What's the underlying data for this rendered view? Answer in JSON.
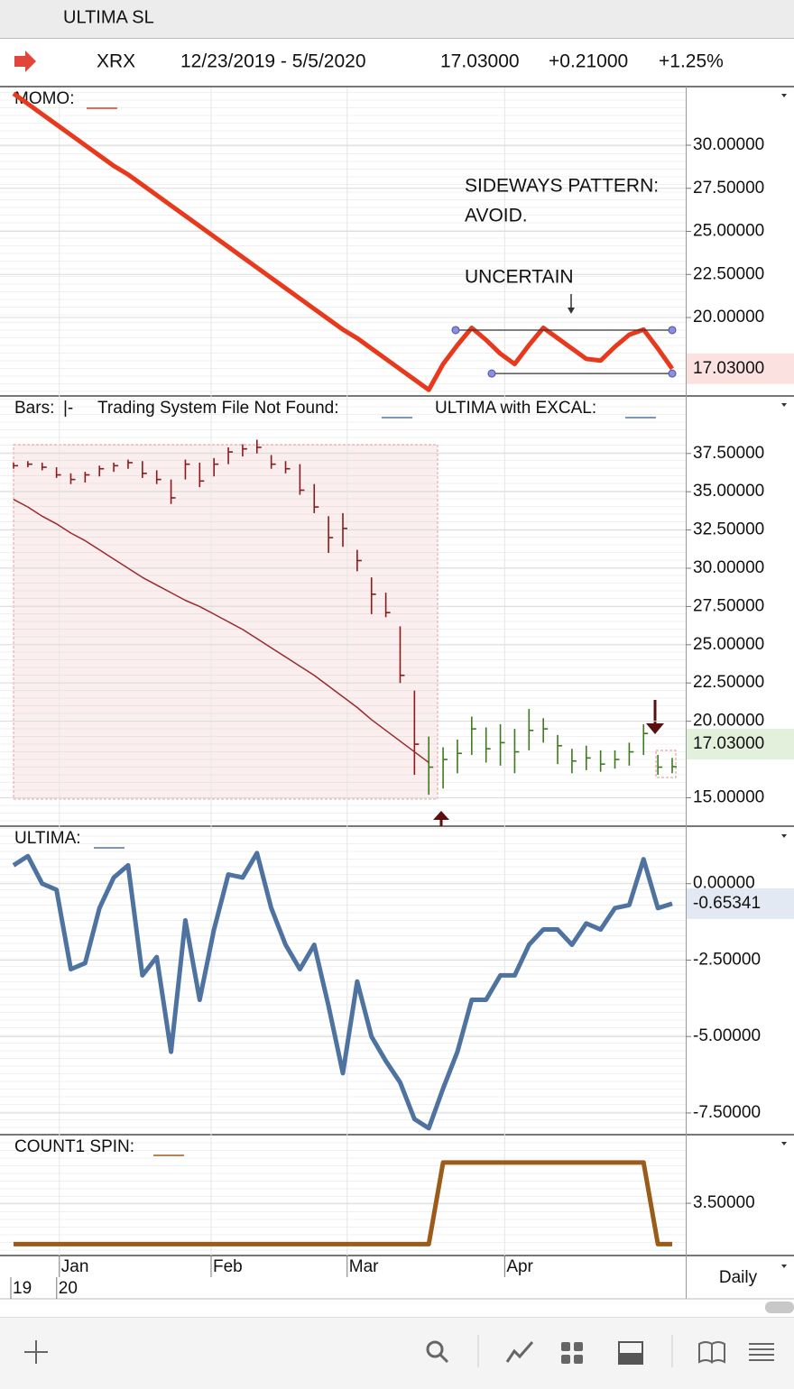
{
  "header": {
    "title": "ULTIMA SL",
    "symbol": "XRX",
    "range": "12/23/2019 - 5/5/2020",
    "last": "17.03000",
    "change": "+0.21000",
    "percent": "+1.25%"
  },
  "x_axis": {
    "xlim": [
      0,
      46
    ],
    "xticks": [
      {
        "value": 3.2,
        "label": "Jan"
      },
      {
        "value": 13.8,
        "label": "Feb"
      },
      {
        "value": 23.3,
        "label": "Mar"
      },
      {
        "value": 34.3,
        "label": "Apr"
      }
    ],
    "years": [
      {
        "value": 0,
        "label": "19"
      },
      {
        "value": 3.2,
        "label": "20"
      }
    ],
    "period": "Daily"
  },
  "chart_data": [
    {
      "type": "line",
      "legend": [
        "MOMO:"
      ],
      "ylim": [
        15.5,
        33.35
      ],
      "yticks": [
        {
          "value": 30,
          "label": "30.00000"
        },
        {
          "value": 27.5,
          "label": "27.50000"
        },
        {
          "value": 25,
          "label": "25.00000"
        },
        {
          "value": 22.5,
          "label": "22.50000"
        },
        {
          "value": 20,
          "label": "20.00000"
        }
      ],
      "series": [
        {
          "color": "#e8391d",
          "values": [
            33.0,
            32.4,
            31.8,
            31.2,
            30.6,
            30.0,
            29.4,
            28.8,
            28.3,
            27.7,
            27.1,
            26.5,
            25.9,
            25.3,
            24.7,
            24.1,
            23.5,
            22.9,
            22.3,
            21.7,
            21.1,
            20.5,
            19.9,
            19.3,
            18.8,
            18.2,
            17.6,
            17.0,
            16.4,
            15.8,
            17.3,
            18.4,
            19.4,
            18.7,
            17.9,
            17.3,
            18.4,
            19.4,
            18.8,
            18.2,
            17.6,
            17.5,
            18.3,
            19.0,
            19.3,
            18.2,
            17.03
          ]
        }
      ],
      "value_label": "17.03000",
      "label_color": "#fbe1df",
      "label_text_color": "#d8341c",
      "annotations": [
        "SIDEWAYS PATTERN:",
        "AVOID.",
        "UNCERTAIN"
      ],
      "channel": {
        "upper": 19.27,
        "lower": 16.75
      }
    },
    {
      "type": "ohlc",
      "legend": [
        "Bars:",
        "|-",
        "Trading System File Not Found:",
        "ULTIMA with EXCAL:"
      ],
      "ylim": [
        13.2,
        41.2
      ],
      "yticks": [
        {
          "value": 37.5,
          "label": "37.50000"
        },
        {
          "value": 35,
          "label": "35.00000"
        },
        {
          "value": 32.5,
          "label": "32.50000"
        },
        {
          "value": 30,
          "label": "30.00000"
        },
        {
          "value": 27.5,
          "label": "27.50000"
        },
        {
          "value": 25,
          "label": "25.00000"
        },
        {
          "value": 22.5,
          "label": "22.50000"
        },
        {
          "value": 20,
          "label": "20.00000"
        },
        {
          "value": 15,
          "label": "15.00000"
        }
      ],
      "series": [
        {
          "color": "#8b1a1a",
          "x": [
            0,
            1,
            2,
            3,
            4,
            5,
            6,
            7,
            8,
            9,
            10,
            11,
            12,
            13,
            14,
            15,
            16,
            17,
            18,
            19,
            20,
            21,
            22,
            23,
            24,
            25,
            26,
            27,
            28
          ],
          "high": [
            36.9,
            37.0,
            36.9,
            36.6,
            36.2,
            36.3,
            36.7,
            36.9,
            37.1,
            37.0,
            36.4,
            35.8,
            37.1,
            36.9,
            37.2,
            37.9,
            38.1,
            38.4,
            37.4,
            37.0,
            36.8,
            35.5,
            33.4,
            33.6,
            31.2,
            29.4,
            28.4,
            26.2,
            22.0
          ],
          "low": [
            36.5,
            36.6,
            36.4,
            35.9,
            35.5,
            35.6,
            36.0,
            36.3,
            36.5,
            35.9,
            35.5,
            34.2,
            35.8,
            35.3,
            36.0,
            36.8,
            37.3,
            37.5,
            36.5,
            36.2,
            34.8,
            33.6,
            31.0,
            31.4,
            29.8,
            27.0,
            26.8,
            22.5,
            16.5
          ],
          "close": [
            36.7,
            36.8,
            36.6,
            36.1,
            35.8,
            36.1,
            36.5,
            36.7,
            36.9,
            36.2,
            35.8,
            34.6,
            36.8,
            35.7,
            36.8,
            37.6,
            37.8,
            37.9,
            36.8,
            36.5,
            35.1,
            34.0,
            32.0,
            32.6,
            30.5,
            28.3,
            27.1,
            23.0,
            18.5
          ]
        },
        {
          "color": "#3d7a1e",
          "x": [
            29,
            30,
            31,
            32,
            33,
            34,
            35,
            36,
            37,
            38,
            39,
            40,
            41,
            42,
            43,
            44,
            45,
            46
          ],
          "high": [
            19.0,
            18.3,
            18.8,
            20.3,
            19.6,
            19.8,
            19.5,
            20.8,
            20.2,
            19.1,
            18.2,
            18.4,
            18.1,
            18.1,
            18.6,
            19.8,
            17.8,
            17.6
          ],
          "low": [
            15.2,
            15.6,
            16.6,
            17.8,
            17.3,
            17.1,
            16.6,
            18.1,
            18.6,
            17.2,
            16.6,
            16.8,
            16.7,
            16.9,
            17.1,
            17.8,
            16.5,
            16.6
          ],
          "close": [
            17.0,
            17.5,
            17.9,
            19.5,
            18.2,
            18.6,
            18.0,
            19.4,
            19.5,
            18.4,
            17.4,
            17.6,
            17.2,
            17.5,
            18.0,
            19.2,
            17.0,
            17.03
          ]
        },
        {
          "color": "#9b2a2a",
          "values": [
            34.5,
            34.0,
            33.4,
            32.9,
            32.3,
            31.8,
            31.2,
            30.6,
            30.0,
            29.4,
            28.9,
            28.4,
            27.9,
            27.5,
            27.0,
            26.5,
            26.0,
            25.4,
            24.8,
            24.2,
            23.6,
            23.0,
            22.3,
            21.6,
            20.9,
            20.1,
            19.4,
            18.7,
            18.0,
            17.3
          ]
        }
      ],
      "value_label": "17.03000",
      "label_color": "#e3f0dc",
      "label_text_color": "#2f6a1a"
    },
    {
      "type": "line",
      "legend": [
        "ULTIMA:"
      ],
      "ylim": [
        -8.18,
        1.85
      ],
      "yticks": [
        {
          "value": 0,
          "label": "0.00000"
        },
        {
          "value": -2.5,
          "label": "-2.50000"
        },
        {
          "value": -5,
          "label": "-5.00000"
        },
        {
          "value": -7.5,
          "label": "-7.50000"
        }
      ],
      "series": [
        {
          "color": "#4f73a0",
          "values": [
            0.6,
            0.9,
            0,
            -0.2,
            -2.8,
            -2.6,
            -0.8,
            0.2,
            0.6,
            -3,
            -2.4,
            -5.5,
            -1.2,
            -3.8,
            -1.5,
            0.3,
            0.2,
            1,
            -0.8,
            -2,
            -2.8,
            -2,
            -4,
            -6.2,
            -3.2,
            -5,
            -5.8,
            -6.5,
            -7.7,
            -8,
            -6.7,
            -5.5,
            -3.8,
            -3.8,
            -3,
            -3,
            -2,
            -1.5,
            -1.5,
            -2,
            -1.3,
            -1.5,
            -0.8,
            -0.7,
            0.8,
            -0.8,
            -0.65341
          ]
        }
      ],
      "value_label": "-0.65341",
      "label_color": "#e2e9f3",
      "label_text_color": "#3b5a85"
    },
    {
      "type": "line",
      "legend": [
        "COUNT1 SPIN:"
      ],
      "ylim": [
        2.86,
        4.33
      ],
      "yticks": [
        {
          "value": 3.5,
          "label": "3.50000"
        }
      ],
      "series": [
        {
          "color": "#9b5c1a",
          "values": [
            3,
            3,
            3,
            3,
            3,
            3,
            3,
            3,
            3,
            3,
            3,
            3,
            3,
            3,
            3,
            3,
            3,
            3,
            3,
            3,
            3,
            3,
            3,
            3,
            3,
            3,
            3,
            3,
            3,
            3,
            4,
            4,
            4,
            4,
            4,
            4,
            4,
            4,
            4,
            4,
            4,
            4,
            4,
            4,
            4,
            3,
            3
          ]
        }
      ]
    }
  ]
}
